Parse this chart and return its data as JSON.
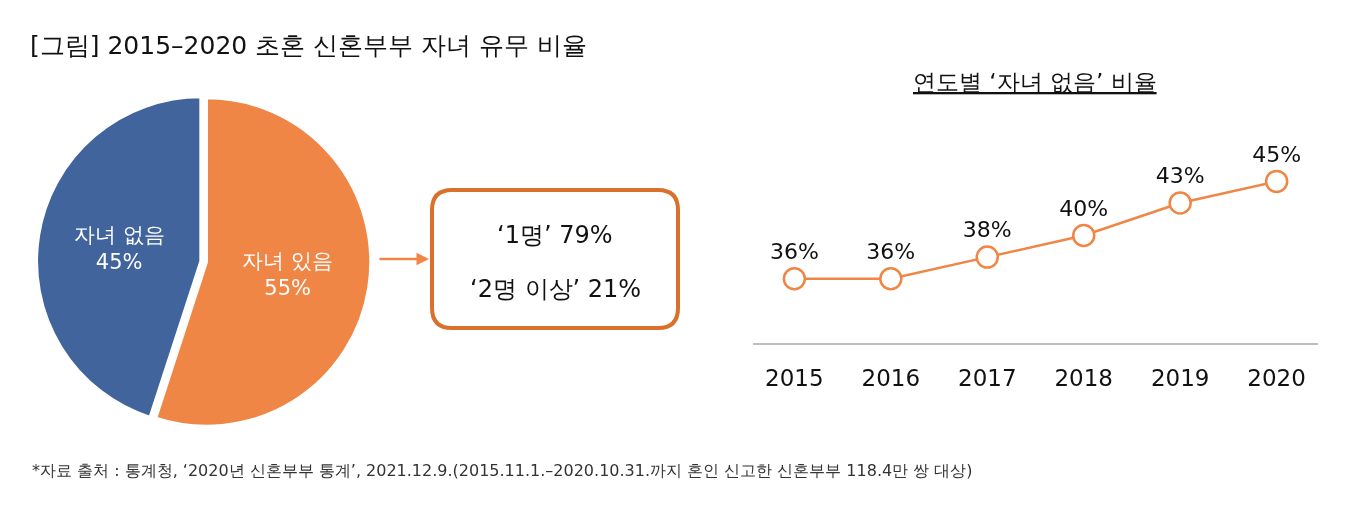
{
  "chart_data": [
    {
      "type": "pie",
      "title": "[그림] 2015–2020 초혼 신혼부부 자녀 유무 비율",
      "categories": [
        "자녀 없음",
        "자녀 있음"
      ],
      "values": [
        45,
        55
      ],
      "colors": [
        "#41649c",
        "#ef8646"
      ],
      "value_labels": [
        "45%",
        "55%"
      ],
      "annotations": [
        "*자료 출처 : 통계청, ‘2020년 신혼부부 통계’, 2021.12.9.(2015.11.1.–2020.10.31.까지 혼인 신고한 신혼부부 118.4만 쌍 대상)"
      ]
    },
    {
      "type": "other",
      "annotations": [
        "‘1명’ 79%",
        "‘2명 이상’ 21%"
      ]
    },
    {
      "type": "line",
      "title": "연도별 ‘자녀 없음’ 비율",
      "categories": [
        "2015",
        "2016",
        "2017",
        "2018",
        "2019",
        "2020"
      ],
      "values": [
        36,
        36,
        38,
        40,
        43,
        45
      ],
      "color": "#ef8646",
      "value_labels": [
        "36%",
        "36%",
        "38%",
        "40%",
        "43%",
        "45%"
      ],
      "marker": "circle",
      "line_style": "solid"
    }
  ]
}
